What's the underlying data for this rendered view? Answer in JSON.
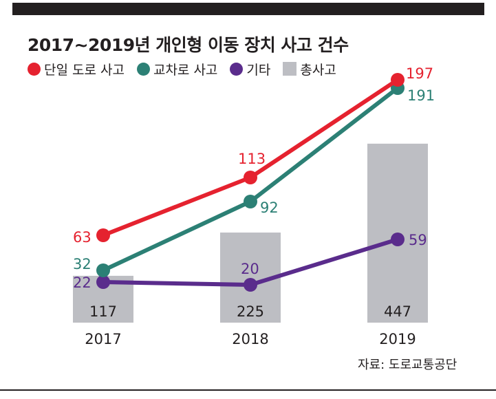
{
  "chart_data": {
    "type": "bar+line",
    "title": "2017~2019년 개인형 이동 장치 사고 건수",
    "categories": [
      "2017",
      "2018",
      "2019"
    ],
    "bars": {
      "name": "총사고",
      "values": [
        117,
        225,
        447
      ],
      "color": "#bdbec3"
    },
    "series": [
      {
        "name": "단일 도로 사고",
        "values": [
          63,
          113,
          197
        ],
        "color": "#e5222f"
      },
      {
        "name": "교차로 사고",
        "values": [
          32,
          92,
          191
        ],
        "color": "#2c8075"
      },
      {
        "name": "기타",
        "values": [
          22,
          20,
          59
        ],
        "color": "#5a2c8c"
      }
    ],
    "legend_position": "top-left",
    "grid": false
  },
  "source": "자료: 도로교통공단"
}
